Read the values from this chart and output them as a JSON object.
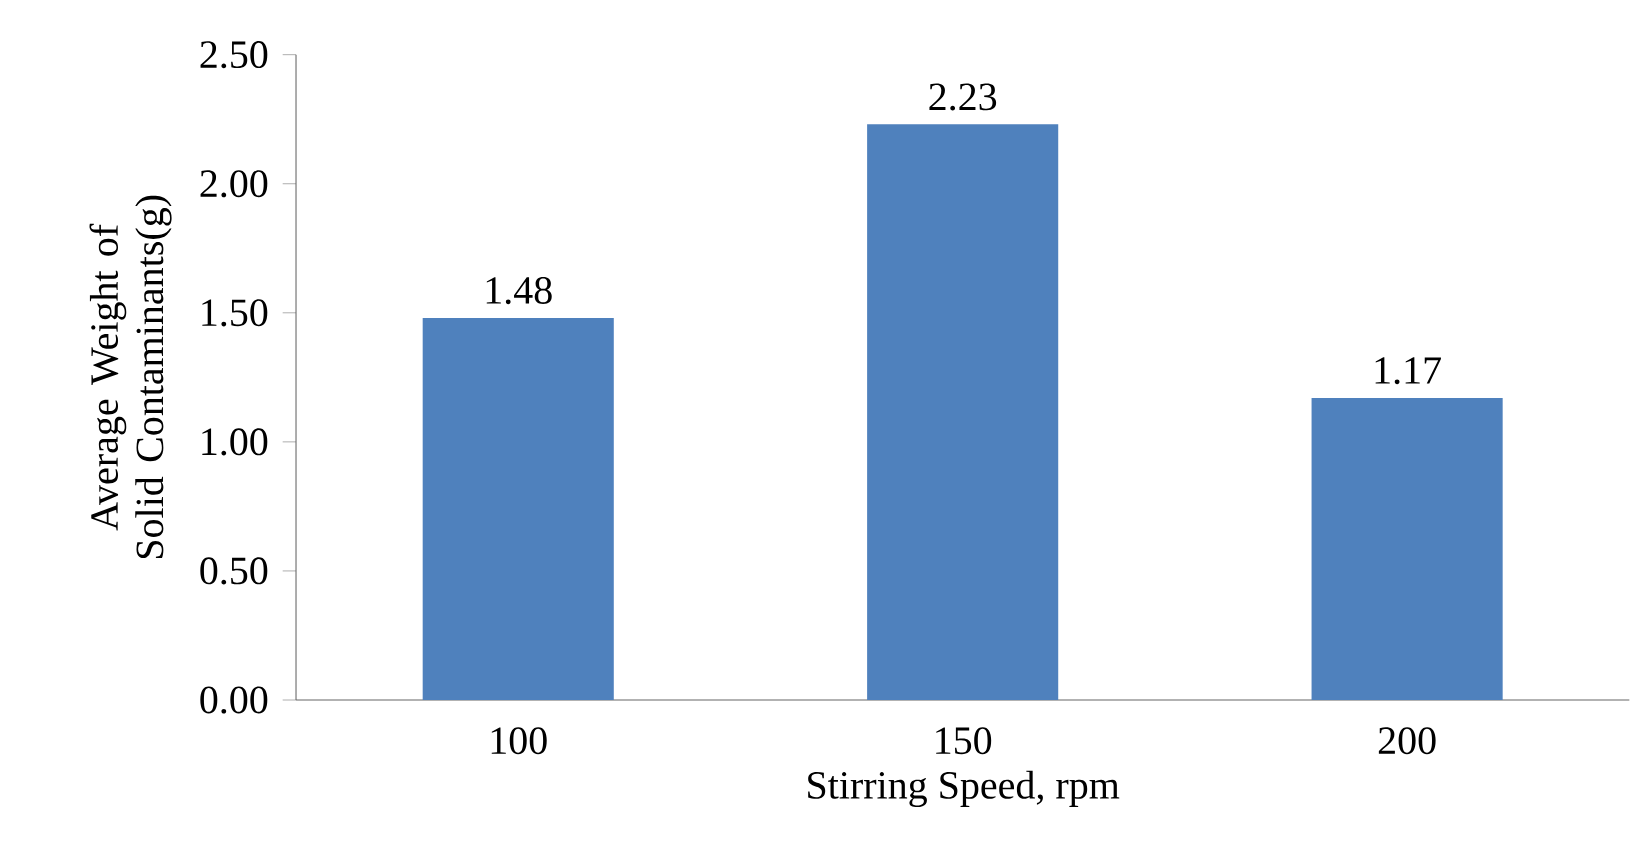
{
  "chart_data": {
    "type": "bar",
    "xlabel": "Stirring Speed, rpm",
    "ylabel": "Average Weight of Solid Contaminants(g)",
    "categories": [
      "100",
      "150",
      "200"
    ],
    "values": [
      1.48,
      2.23,
      1.17
    ],
    "color": "#4f81bd",
    "ylim": [
      0,
      2.5
    ],
    "yticks": [
      {
        "value": 0,
        "label": "0.00"
      },
      {
        "value": 0.5,
        "label": "0.50"
      },
      {
        "value": 1,
        "label": "1.00"
      },
      {
        "value": 1.5,
        "label": "1.50"
      },
      {
        "value": 2,
        "label": "2.00"
      },
      {
        "value": 2.5,
        "label": "2.50"
      }
    ],
    "data_labels": true,
    "grid": false
  }
}
